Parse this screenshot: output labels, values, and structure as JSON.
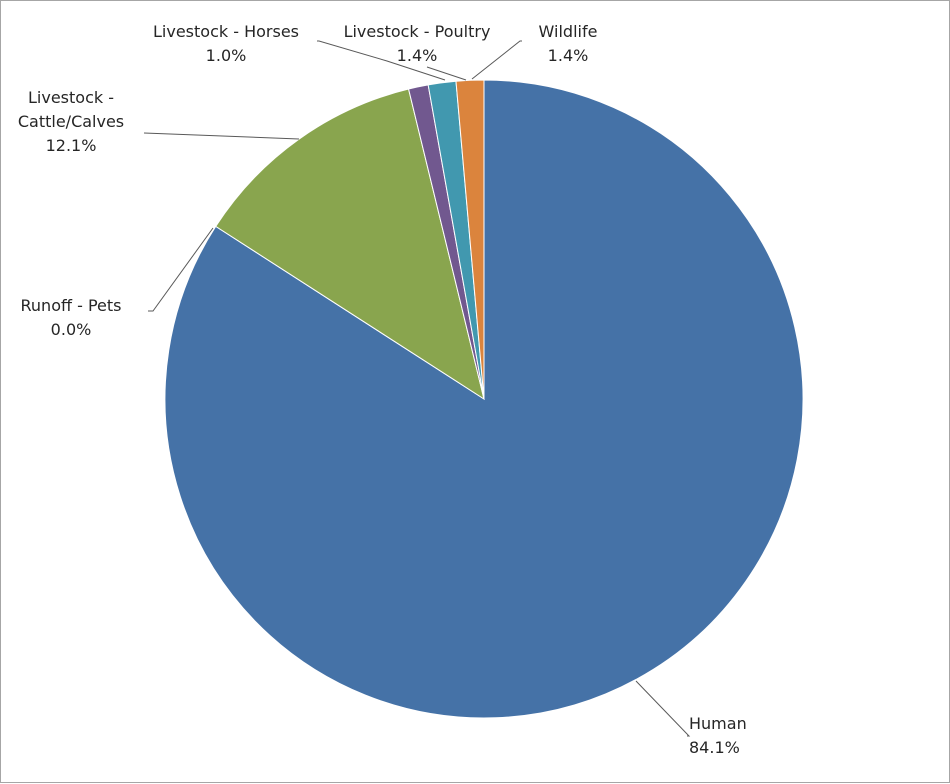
{
  "chart_data": {
    "type": "pie",
    "title": "",
    "start_angle_deg": 0,
    "direction": "clockwise",
    "slices": [
      {
        "name": "Human",
        "value": 84.1,
        "label": "84.1%",
        "color": "#4572A7"
      },
      {
        "name": "Runoff - Pets",
        "value": 0.0,
        "label": "0.0%",
        "color": "#AA4643"
      },
      {
        "name": "Livestock - Cattle/Calves",
        "value": 12.1,
        "label": "12.1%",
        "color": "#89A54E"
      },
      {
        "name": "Livestock - Horses",
        "value": 1.0,
        "label": "1.0%",
        "color": "#71588F"
      },
      {
        "name": "Livestock - Poultry",
        "value": 1.4,
        "label": "1.4%",
        "color": "#4198AF"
      },
      {
        "name": "Wildlife",
        "value": 1.4,
        "label": "1.4%",
        "color": "#DB843D"
      }
    ],
    "slice_labels": [
      {
        "lines": [
          "Human"
        ],
        "pct": "84.1%"
      },
      {
        "lines": [
          "Runoff - Pets"
        ],
        "pct": "0.0%"
      },
      {
        "lines": [
          "Livestock -",
          "Cattle/Calves"
        ],
        "pct": "12.1%"
      },
      {
        "lines": [
          "Livestock - Horses"
        ],
        "pct": "1.0%"
      },
      {
        "lines": [
          "Livestock - Poultry"
        ],
        "pct": "1.4%"
      },
      {
        "lines": [
          "Wildlife"
        ],
        "pct": "1.4%"
      }
    ],
    "legend": "none",
    "slice_border_color": "#ffffff"
  }
}
